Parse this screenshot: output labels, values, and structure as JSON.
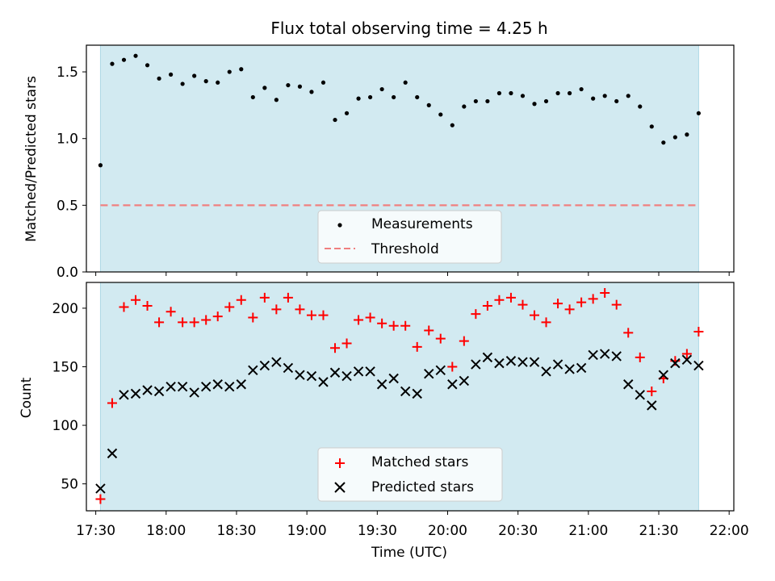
{
  "chart_data": [
    {
      "type": "scatter",
      "title": "Flux total observing time = 4.25 h",
      "xlabel": "",
      "ylabel": "Matched/Predicted stars",
      "ylim": [
        0,
        1.7
      ],
      "xlim": [
        "17:26",
        "22:02"
      ],
      "yticks": [
        0.0,
        0.5,
        1.0,
        1.5
      ],
      "ytick_labels": [
        "0.0",
        "0.5",
        "1.0",
        "1.5"
      ],
      "shaded_span": {
        "from": "17:32",
        "to": "21:47",
        "color": "#add8e6"
      },
      "legend_position": "lower center",
      "series": [
        {
          "name": "Measurements",
          "marker": "dot",
          "color": "#000000",
          "points": [
            [
              "17:32",
              0.8
            ],
            [
              "17:37",
              1.56
            ],
            [
              "17:42",
              1.59
            ],
            [
              "17:47",
              1.62
            ],
            [
              "17:52",
              1.55
            ],
            [
              "17:57",
              1.45
            ],
            [
              "18:02",
              1.48
            ],
            [
              "18:07",
              1.41
            ],
            [
              "18:12",
              1.47
            ],
            [
              "18:17",
              1.43
            ],
            [
              "18:22",
              1.42
            ],
            [
              "18:27",
              1.5
            ],
            [
              "18:32",
              1.52
            ],
            [
              "18:37",
              1.31
            ],
            [
              "18:42",
              1.38
            ],
            [
              "18:47",
              1.29
            ],
            [
              "18:52",
              1.4
            ],
            [
              "18:57",
              1.39
            ],
            [
              "19:02",
              1.35
            ],
            [
              "19:07",
              1.42
            ],
            [
              "19:12",
              1.14
            ],
            [
              "19:17",
              1.19
            ],
            [
              "19:22",
              1.3
            ],
            [
              "19:27",
              1.31
            ],
            [
              "19:32",
              1.37
            ],
            [
              "19:37",
              1.31
            ],
            [
              "19:42",
              1.42
            ],
            [
              "19:47",
              1.31
            ],
            [
              "19:52",
              1.25
            ],
            [
              "19:57",
              1.18
            ],
            [
              "20:02",
              1.1
            ],
            [
              "20:07",
              1.24
            ],
            [
              "20:12",
              1.28
            ],
            [
              "20:17",
              1.28
            ],
            [
              "20:22",
              1.34
            ],
            [
              "20:27",
              1.34
            ],
            [
              "20:32",
              1.32
            ],
            [
              "20:37",
              1.26
            ],
            [
              "20:42",
              1.28
            ],
            [
              "20:47",
              1.34
            ],
            [
              "20:52",
              1.34
            ],
            [
              "20:57",
              1.37
            ],
            [
              "21:02",
              1.3
            ],
            [
              "21:07",
              1.32
            ],
            [
              "21:12",
              1.28
            ],
            [
              "21:17",
              1.32
            ],
            [
              "21:22",
              1.24
            ],
            [
              "21:27",
              1.09
            ],
            [
              "21:32",
              0.97
            ],
            [
              "21:37",
              1.01
            ],
            [
              "21:42",
              1.03
            ],
            [
              "21:47",
              1.19
            ]
          ]
        },
        {
          "name": "Threshold",
          "type": "line",
          "style": "dashed",
          "color": "#f08080",
          "value": 0.5,
          "from": "17:32",
          "to": "21:47"
        }
      ]
    },
    {
      "type": "scatter",
      "title": "",
      "xlabel": "Time (UTC)",
      "ylabel": "Count",
      "ylim": [
        27,
        222
      ],
      "xlim": [
        "17:26",
        "22:02"
      ],
      "yticks": [
        50,
        100,
        150,
        200
      ],
      "ytick_labels": [
        "50",
        "100",
        "150",
        "200"
      ],
      "xticks": [
        "17:30",
        "18:00",
        "18:30",
        "19:00",
        "19:30",
        "20:00",
        "20:30",
        "21:00",
        "21:30",
        "22:00"
      ],
      "shaded_span": {
        "from": "17:32",
        "to": "21:47",
        "color": "#add8e6"
      },
      "legend_position": "lower center",
      "series": [
        {
          "name": "Matched stars",
          "marker": "plus",
          "color": "#ff0000",
          "points": [
            [
              "17:32",
              37
            ],
            [
              "17:37",
              119
            ],
            [
              "17:42",
              201
            ],
            [
              "17:47",
              207
            ],
            [
              "17:52",
              202
            ],
            [
              "17:57",
              188
            ],
            [
              "18:02",
              197
            ],
            [
              "18:07",
              188
            ],
            [
              "18:12",
              188
            ],
            [
              "18:17",
              190
            ],
            [
              "18:22",
              193
            ],
            [
              "18:27",
              201
            ],
            [
              "18:32",
              207
            ],
            [
              "18:37",
              192
            ],
            [
              "18:42",
              209
            ],
            [
              "18:47",
              199
            ],
            [
              "18:52",
              209
            ],
            [
              "18:57",
              199
            ],
            [
              "19:02",
              194
            ],
            [
              "19:07",
              194
            ],
            [
              "19:12",
              166
            ],
            [
              "19:17",
              170
            ],
            [
              "19:22",
              190
            ],
            [
              "19:27",
              192
            ],
            [
              "19:32",
              187
            ],
            [
              "19:37",
              185
            ],
            [
              "19:42",
              185
            ],
            [
              "19:47",
              167
            ],
            [
              "19:52",
              181
            ],
            [
              "19:57",
              174
            ],
            [
              "20:02",
              150
            ],
            [
              "20:07",
              172
            ],
            [
              "20:12",
              195
            ],
            [
              "20:17",
              202
            ],
            [
              "20:22",
              207
            ],
            [
              "20:27",
              209
            ],
            [
              "20:32",
              203
            ],
            [
              "20:37",
              194
            ],
            [
              "20:42",
              188
            ],
            [
              "20:47",
              204
            ],
            [
              "20:52",
              199
            ],
            [
              "20:57",
              205
            ],
            [
              "21:02",
              208
            ],
            [
              "21:07",
              213
            ],
            [
              "21:12",
              203
            ],
            [
              "21:17",
              179
            ],
            [
              "21:22",
              158
            ],
            [
              "21:27",
              129
            ],
            [
              "21:32",
              140
            ],
            [
              "21:37",
              155
            ],
            [
              "21:42",
              161
            ],
            [
              "21:47",
              180
            ]
          ]
        },
        {
          "name": "Predicted stars",
          "marker": "x",
          "color": "#000000",
          "points": [
            [
              "17:32",
              46
            ],
            [
              "17:37",
              76
            ],
            [
              "17:42",
              126
            ],
            [
              "17:47",
              127
            ],
            [
              "17:52",
              130
            ],
            [
              "17:57",
              129
            ],
            [
              "18:02",
              133
            ],
            [
              "18:07",
              133
            ],
            [
              "18:12",
              128
            ],
            [
              "18:17",
              133
            ],
            [
              "18:22",
              135
            ],
            [
              "18:27",
              133
            ],
            [
              "18:32",
              135
            ],
            [
              "18:37",
              147
            ],
            [
              "18:42",
              151
            ],
            [
              "18:47",
              154
            ],
            [
              "18:52",
              149
            ],
            [
              "18:57",
              143
            ],
            [
              "19:02",
              142
            ],
            [
              "19:07",
              137
            ],
            [
              "19:12",
              145
            ],
            [
              "19:17",
              142
            ],
            [
              "19:22",
              146
            ],
            [
              "19:27",
              146
            ],
            [
              "19:32",
              135
            ],
            [
              "19:37",
              140
            ],
            [
              "19:42",
              129
            ],
            [
              "19:47",
              127
            ],
            [
              "19:52",
              144
            ],
            [
              "19:57",
              147
            ],
            [
              "20:02",
              135
            ],
            [
              "20:07",
              138
            ],
            [
              "20:12",
              152
            ],
            [
              "20:17",
              158
            ],
            [
              "20:22",
              153
            ],
            [
              "20:27",
              155
            ],
            [
              "20:32",
              154
            ],
            [
              "20:37",
              154
            ],
            [
              "20:42",
              146
            ],
            [
              "20:47",
              152
            ],
            [
              "20:52",
              148
            ],
            [
              "20:57",
              149
            ],
            [
              "21:02",
              160
            ],
            [
              "21:07",
              161
            ],
            [
              "21:12",
              159
            ],
            [
              "21:17",
              135
            ],
            [
              "21:22",
              126
            ],
            [
              "21:27",
              117
            ],
            [
              "21:32",
              143
            ],
            [
              "21:37",
              153
            ],
            [
              "21:42",
              156
            ],
            [
              "21:47",
              151
            ]
          ]
        }
      ]
    }
  ]
}
